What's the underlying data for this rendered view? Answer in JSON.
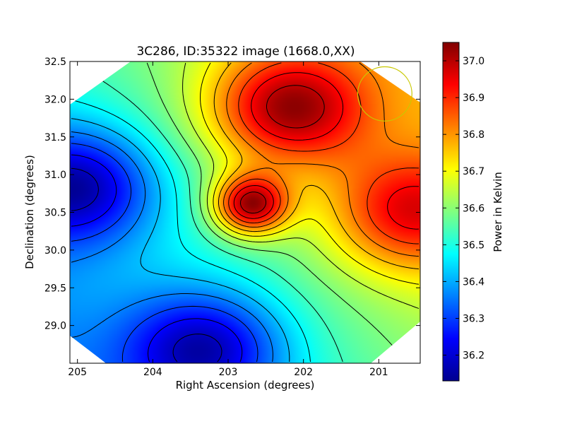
{
  "chart_data": {
    "type": "heatmap",
    "title": "3C286, ID:35322 image (1668.0,XX)",
    "xlabel": "Right Ascension (degrees)",
    "ylabel": "Declination (degrees)",
    "xlim": [
      205.1,
      200.45
    ],
    "ylim": [
      28.5,
      32.5
    ],
    "x_ticks": [
      "205",
      "204",
      "203",
      "202",
      "201"
    ],
    "x_tick_values": [
      205,
      204,
      203,
      202,
      201
    ],
    "y_ticks": [
      "29.0",
      "29.5",
      "30.0",
      "30.5",
      "31.0",
      "31.5",
      "32.0",
      "32.5"
    ],
    "y_tick_values": [
      29.0,
      29.5,
      30.0,
      30.5,
      31.0,
      31.5,
      32.0,
      32.5
    ],
    "colormap": "jet",
    "grid": false,
    "colorbar": {
      "label": "Power in Kelvin",
      "range": [
        36.13,
        37.05
      ],
      "ticks": [
        "36.2",
        "36.3",
        "36.4",
        "36.5",
        "36.6",
        "36.7",
        "36.8",
        "36.9",
        "37.0"
      ],
      "tick_values": [
        36.2,
        36.3,
        36.4,
        36.5,
        36.6,
        36.7,
        36.8,
        36.9,
        37.0
      ]
    },
    "field_features": [
      {
        "kind": "peak",
        "ra": 202.7,
        "dec": 30.6,
        "value": 37.04
      },
      {
        "kind": "peak",
        "ra": 202.2,
        "dec": 31.87,
        "value": 36.97
      },
      {
        "kind": "peak",
        "ra": 200.6,
        "dec": 30.5,
        "value": 36.86
      },
      {
        "kind": "valley",
        "ra": 205.0,
        "dec": 30.85,
        "value": 36.15
      },
      {
        "kind": "valley",
        "ra": 203.3,
        "dec": 28.7,
        "value": 36.17
      }
    ],
    "beam_circle": {
      "ra": 200.92,
      "dec": 32.07,
      "radius_deg": 0.36,
      "color": "#c8c800"
    }
  }
}
